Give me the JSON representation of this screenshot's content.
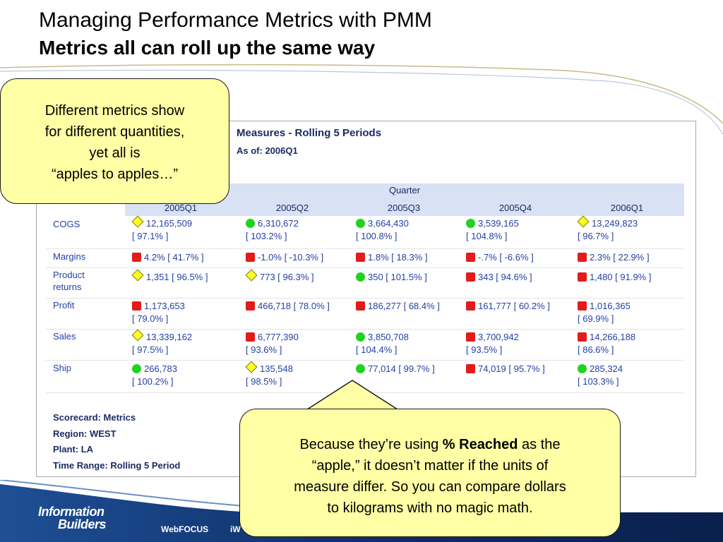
{
  "slide": {
    "title": "Managing Performance Metrics with PMM",
    "subtitle": "Metrics all can roll up the same way"
  },
  "panel": {
    "title": "Measures - Rolling 5 Periods",
    "as_of": "As of: 2006Q1",
    "quarter_label": "Quarter",
    "quarters": [
      "2005Q1",
      "2005Q2",
      "2005Q3",
      "2005Q4",
      "2006Q1"
    ],
    "rows": [
      {
        "label": "COGS",
        "cells": [
          {
            "indicator": "diamond",
            "line1": "12,165,509",
            "line2": "[ 97.1% ]"
          },
          {
            "indicator": "circle",
            "line1": "6,310,672",
            "line2": "[ 103.2% ]"
          },
          {
            "indicator": "circle",
            "line1": "3,664,430",
            "line2": "[ 100.8% ]"
          },
          {
            "indicator": "circle",
            "line1": "3,539,165",
            "line2": "[ 104.8% ]"
          },
          {
            "indicator": "diamond",
            "line1": "13,249,823",
            "line2": "[ 96.7% ]"
          }
        ]
      },
      {
        "label": "Margins",
        "cells": [
          {
            "indicator": "square",
            "line1": "4.2% [ 41.7% ]",
            "line2": ""
          },
          {
            "indicator": "square",
            "line1": "-1.0% [ -10.3% ]",
            "line2": ""
          },
          {
            "indicator": "square",
            "line1": "1.8% [ 18.3% ]",
            "line2": ""
          },
          {
            "indicator": "square",
            "line1": "-.7% [ -6.6% ]",
            "line2": ""
          },
          {
            "indicator": "square",
            "line1": "2.3% [ 22.9% ]",
            "line2": ""
          }
        ]
      },
      {
        "label": "Product returns",
        "label_line1": "Product",
        "label_line2": "returns",
        "cells": [
          {
            "indicator": "diamond",
            "line1": "1,351 [ 96.5% ]",
            "line2": ""
          },
          {
            "indicator": "diamond",
            "line1": "773 [ 96.3% ]",
            "line2": ""
          },
          {
            "indicator": "circle",
            "line1": "350 [ 101.5% ]",
            "line2": ""
          },
          {
            "indicator": "square",
            "line1": "343 [ 94.6% ]",
            "line2": ""
          },
          {
            "indicator": "square",
            "line1": "1,480 [ 91.9% ]",
            "line2": ""
          }
        ]
      },
      {
        "label": "Profit",
        "cells": [
          {
            "indicator": "square",
            "line1": "1,173,653",
            "line2": "[ 79.0% ]"
          },
          {
            "indicator": "square",
            "line1": "466,718 [ 78.0% ]",
            "line2": ""
          },
          {
            "indicator": "square",
            "line1": "186,277 [ 68.4% ]",
            "line2": ""
          },
          {
            "indicator": "square",
            "line1": "161,777 [ 60.2% ]",
            "line2": ""
          },
          {
            "indicator": "square",
            "line1": "1,016,365",
            "line2": "[ 69.9% ]"
          }
        ]
      },
      {
        "label": "Sales",
        "cells": [
          {
            "indicator": "diamond",
            "line1": "13,339,162",
            "line2": "[ 97.5% ]"
          },
          {
            "indicator": "square",
            "line1": "6,777,390",
            "line2": "[ 93.6% ]"
          },
          {
            "indicator": "circle",
            "line1": "3,850,708",
            "line2": "[ 104.4% ]"
          },
          {
            "indicator": "square",
            "line1": "3,700,942",
            "line2": "[ 93.5% ]"
          },
          {
            "indicator": "square",
            "line1": "14,266,188",
            "line2": "[ 86.6% ]"
          }
        ]
      },
      {
        "label": "Ship",
        "cells": [
          {
            "indicator": "circle",
            "line1": "266,783",
            "line2": "[ 100.2% ]"
          },
          {
            "indicator": "diamond",
            "line1": "135,548",
            "line2": "[ 98.5% ]"
          },
          {
            "indicator": "circle",
            "line1": "77,014 [ 99.7% ]",
            "line2": ""
          },
          {
            "indicator": "square",
            "line1": "74,019 [ 95.7% ]",
            "line2": ""
          },
          {
            "indicator": "circle",
            "line1": "285,324",
            "line2": "[ 103.3% ]"
          }
        ]
      }
    ],
    "meta": [
      "Scorecard: Metrics",
      "Region: WEST",
      "Plant: LA",
      "Time Range: Rolling 5 Period"
    ]
  },
  "callouts": {
    "first": {
      "line1": "Different metrics show",
      "line2": "for different quantities,",
      "line3": "yet all is",
      "line4": "“apples to apples…”"
    },
    "second": {
      "prefix": "Because they’re using ",
      "bold": "% Reached",
      "suffix": " as the",
      "line2": "“apple,” it doesn’t matter if the units of",
      "line3": "measure differ. So you can compare dollars",
      "line4": "to kilograms with no magic math."
    }
  },
  "footer": {
    "logo_line1": "Information",
    "logo_line2": "Builders",
    "product1": "WebFOCUS",
    "product2": "iW"
  },
  "colors": {
    "red_indicator": "#e21b1b",
    "green_indicator": "#1fd31f",
    "yellow_indicator": "#ffff22",
    "callout_fill": "#ffffa5",
    "header_band": "#d8e2f4",
    "link_blue": "#2540a6",
    "footer_blue": "#1e4f95"
  }
}
